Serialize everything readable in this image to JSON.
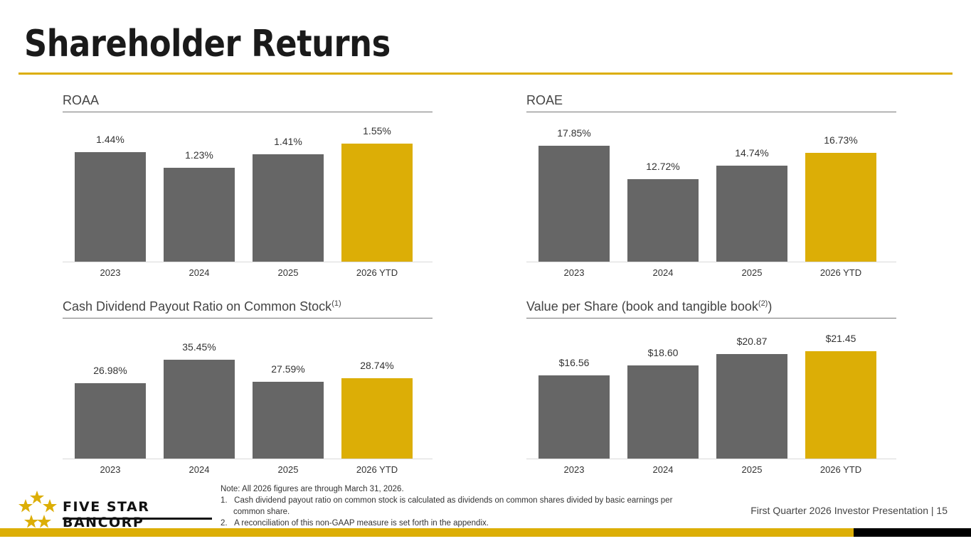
{
  "title": "Shareholder Returns",
  "colors": {
    "gray": "#666666",
    "gold": "#dcae06"
  },
  "chart_data": [
    {
      "type": "bar",
      "title": "ROAA",
      "title_sup": "",
      "categories": [
        "2023",
        "2024",
        "2025",
        "2026 YTD"
      ],
      "values": [
        1.44,
        1.23,
        1.41,
        1.55
      ],
      "labels": [
        "1.44%",
        "1.23%",
        "1.41%",
        "1.55%"
      ],
      "highlight": "2026 YTD",
      "ylim": [
        0,
        1.6
      ]
    },
    {
      "type": "bar",
      "title": "ROAE",
      "title_sup": "",
      "categories": [
        "2023",
        "2024",
        "2025",
        "2026 YTD"
      ],
      "values": [
        17.85,
        12.72,
        14.74,
        16.73
      ],
      "labels": [
        "17.85%",
        "12.72%",
        "14.74%",
        "16.73%"
      ],
      "highlight": "2026 YTD",
      "ylim": [
        0,
        18
      ]
    },
    {
      "type": "bar",
      "title": "Cash Dividend Payout Ratio on Common Stock",
      "title_sup": "(1)",
      "title_after": "",
      "categories": [
        "2023",
        "2024",
        "2025",
        "2026 YTD"
      ],
      "values": [
        26.98,
        35.45,
        27.59,
        28.74
      ],
      "labels": [
        "26.98%",
        "35.45%",
        "27.59%",
        "28.74%"
      ],
      "highlight": "2026 YTD",
      "ylim": [
        0,
        36
      ]
    },
    {
      "type": "bar",
      "title": "Value per Share (book and tangible book",
      "title_sup": "(2)",
      "title_after": ")",
      "categories": [
        "2023",
        "2024",
        "2025",
        "2026 YTD"
      ],
      "values": [
        16.56,
        18.6,
        20.87,
        21.45
      ],
      "labels": [
        "$16.56",
        "$18.60",
        "$20.87",
        "$21.45"
      ],
      "highlight": "2026 YTD",
      "ylim": [
        0,
        22
      ]
    }
  ],
  "notes": {
    "note": "Note: All 2026 figures are through March 31, 2026.",
    "fn1": "1.   Cash dividend payout ratio on common stock is calculated as dividends on common shares divided by basic earnings per common share.",
    "fn2": "2.   A reconciliation of this non-GAAP measure is set forth in the appendix."
  },
  "footer": {
    "text": "First Quarter 2026 Investor Presentation |  15",
    "logo_text": "FIVE STAR BANCORP"
  }
}
